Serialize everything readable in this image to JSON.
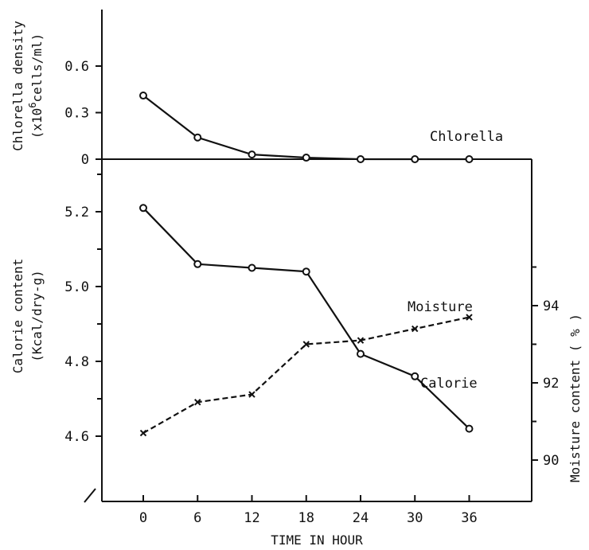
{
  "chart_data": [
    {
      "type": "line",
      "panel": "top",
      "ylabel_line1": "Chlorella density",
      "ylabel_line2": "(x10",
      "ylabel_sup": "6",
      "ylabel_line2_end": "cells/ml)",
      "y_ticks": [
        "0.6",
        "0.3",
        "0"
      ],
      "ylim": [
        0,
        0.75
      ],
      "series": [
        {
          "name": "Chlorella",
          "marker": "circle",
          "dash": "solid",
          "x": [
            0,
            6,
            12,
            18,
            24,
            30,
            36
          ],
          "values": [
            0.41,
            0.14,
            0.03,
            0.01,
            0.0,
            0.0,
            0.0
          ]
        }
      ]
    },
    {
      "type": "line",
      "panel": "bottom",
      "xlabel": "TIME IN HOUR",
      "x_ticks": [
        "0",
        "6",
        "12",
        "18",
        "24",
        "30",
        "36"
      ],
      "xlim": [
        -5,
        40
      ],
      "ylabel_left": "Calorie content",
      "ylabel_left_unit": "(Kcal/dry-g)",
      "y_left_ticks": [
        "5.2",
        "5.0",
        "4.8",
        "4.6"
      ],
      "ylim_left": [
        4.5,
        5.4
      ],
      "ylabel_right": "Moisture content ( % )",
      "y_right_ticks": [
        "94",
        "92",
        "90"
      ],
      "ylim_right": [
        89,
        96
      ],
      "series": [
        {
          "name": "Calorie",
          "axis": "left",
          "marker": "circle",
          "dash": "solid",
          "x": [
            0,
            6,
            12,
            18,
            24,
            30,
            36
          ],
          "values": [
            5.21,
            5.06,
            5.05,
            5.04,
            4.82,
            4.76,
            4.62
          ]
        },
        {
          "name": "Moisture",
          "axis": "right",
          "marker": "cross",
          "dash": "dashed",
          "x": [
            0,
            6,
            12,
            18,
            24,
            30,
            36
          ],
          "values": [
            90.7,
            91.5,
            91.7,
            93.0,
            93.1,
            93.4,
            93.7
          ]
        }
      ]
    }
  ]
}
